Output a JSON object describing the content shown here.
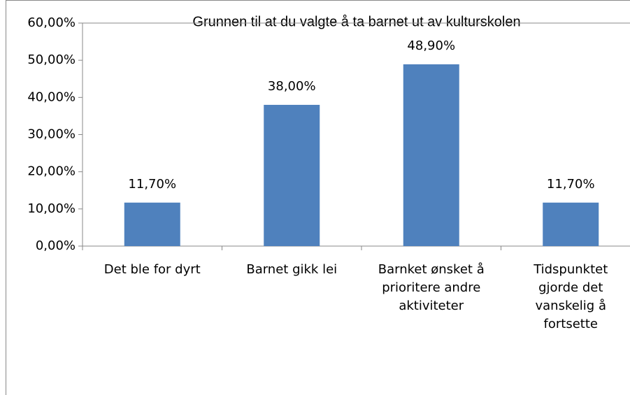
{
  "chart_data": {
    "type": "bar",
    "title": "Grunnen til at du valgte å ta barnet ut av kulturskolen",
    "categories": [
      "Det ble for dyrt",
      "Barnet gikk lei",
      "Barnket ønsket å\nprioritere andre\naktiviteter",
      "Tidspunktet\ngjorde det\nvanskelig å\nfortsette"
    ],
    "values": [
      11.7,
      38.0,
      48.9,
      11.7
    ],
    "value_labels": [
      "11,70%",
      "38,00%",
      "48,90%",
      "11,70%"
    ],
    "color": "#4f81bd",
    "ylim": [
      0,
      60
    ],
    "yticks": [
      {
        "value": 0,
        "label": "0,00%"
      },
      {
        "value": 10,
        "label": "10,00%"
      },
      {
        "value": 20,
        "label": "20,00%"
      },
      {
        "value": 30,
        "label": "30,00%"
      },
      {
        "value": 40,
        "label": "40,00%"
      },
      {
        "value": 50,
        "label": "50,00%"
      },
      {
        "value": 60,
        "label": "60,00%"
      }
    ],
    "grid": false
  }
}
